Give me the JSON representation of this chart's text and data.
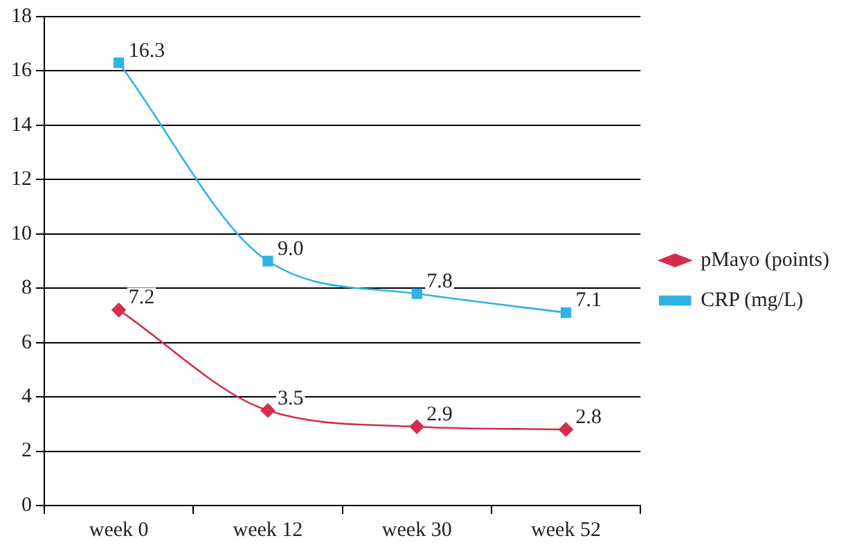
{
  "chart_data": {
    "type": "line",
    "categories": [
      "week 0",
      "week 12",
      "week 30",
      "week 52"
    ],
    "series": [
      {
        "name": "pMayo (points)",
        "color": "#d42e4c",
        "marker": "diamond",
        "values": [
          7.2,
          3.5,
          2.9,
          2.8
        ],
        "value_labels": [
          "7.2",
          "3.5",
          "2.9",
          "2.8"
        ]
      },
      {
        "name": "CRP (mg/L)",
        "color": "#2fb3e6",
        "marker": "square",
        "values": [
          16.3,
          9,
          7.8,
          7.1
        ],
        "value_labels": [
          "16.3",
          "9.0",
          "7.8",
          "7.1"
        ]
      }
    ],
    "ylim": [
      0,
      18
    ],
    "yticks": [
      0,
      2,
      4,
      6,
      8,
      10,
      12,
      14,
      16,
      18
    ],
    "grid": "y",
    "legend": "right"
  }
}
